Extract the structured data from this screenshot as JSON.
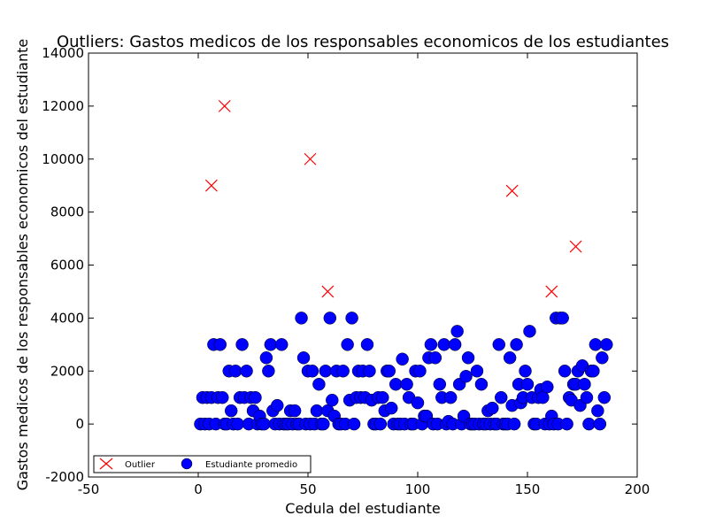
{
  "chart_data": {
    "type": "scatter",
    "title": "Outliers: Gastos medicos de los responsables economicos de los estudiantes",
    "xlabel": "Cedula del estudiante",
    "ylabel": "Gastos medicos de los responsables economicos del estudiante",
    "xlim": [
      -50,
      200
    ],
    "ylim": [
      -2000,
      14000
    ],
    "xticks": [
      -50,
      0,
      50,
      100,
      150,
      200
    ],
    "yticks": [
      -2000,
      0,
      2000,
      4000,
      6000,
      8000,
      10000,
      12000,
      14000
    ],
    "grid": false,
    "legend_position": "lower-left",
    "series": [
      {
        "name": "Outlier",
        "marker": "x",
        "color": "#ff0000",
        "points": [
          [
            6,
            9000
          ],
          [
            12,
            12000
          ],
          [
            51,
            10000
          ],
          [
            59,
            5000
          ],
          [
            143,
            8800
          ],
          [
            161,
            5000
          ],
          [
            172,
            6700
          ]
        ]
      },
      {
        "name": "Estudiante promedio",
        "marker": "circle",
        "color": "#0000ff",
        "points": [
          [
            1,
            0
          ],
          [
            2,
            1000
          ],
          [
            3,
            0
          ],
          [
            4,
            1000
          ],
          [
            5,
            0
          ],
          [
            6,
            1000
          ],
          [
            7,
            3000
          ],
          [
            8,
            0
          ],
          [
            9,
            1000
          ],
          [
            10,
            3000
          ],
          [
            11,
            1000
          ],
          [
            12,
            0
          ],
          [
            13,
            0
          ],
          [
            14,
            2000
          ],
          [
            15,
            500
          ],
          [
            16,
            0
          ],
          [
            17,
            2000
          ],
          [
            18,
            0
          ],
          [
            19,
            1000
          ],
          [
            20,
            3000
          ],
          [
            21,
            1000
          ],
          [
            22,
            2000
          ],
          [
            23,
            0
          ],
          [
            24,
            1000
          ],
          [
            25,
            500
          ],
          [
            26,
            1000
          ],
          [
            27,
            0
          ],
          [
            28,
            300
          ],
          [
            29,
            0
          ],
          [
            30,
            0
          ],
          [
            31,
            2500
          ],
          [
            32,
            2000
          ],
          [
            33,
            3000
          ],
          [
            34,
            500
          ],
          [
            35,
            0
          ],
          [
            36,
            700
          ],
          [
            37,
            0
          ],
          [
            38,
            3000
          ],
          [
            39,
            0
          ],
          [
            40,
            0
          ],
          [
            41,
            0
          ],
          [
            42,
            500
          ],
          [
            43,
            0
          ],
          [
            44,
            500
          ],
          [
            45,
            0
          ],
          [
            46,
            0
          ],
          [
            47,
            4000
          ],
          [
            48,
            2500
          ],
          [
            49,
            0
          ],
          [
            50,
            2000
          ],
          [
            51,
            0
          ],
          [
            52,
            2000
          ],
          [
            53,
            0
          ],
          [
            54,
            500
          ],
          [
            55,
            1500
          ],
          [
            56,
            0
          ],
          [
            57,
            0
          ],
          [
            58,
            2000
          ],
          [
            59,
            500
          ],
          [
            60,
            4000
          ],
          [
            61,
            900
          ],
          [
            62,
            300
          ],
          [
            63,
            2000
          ],
          [
            64,
            0
          ],
          [
            65,
            0
          ],
          [
            66,
            2000
          ],
          [
            67,
            0
          ],
          [
            68,
            3000
          ],
          [
            69,
            900
          ],
          [
            70,
            4000
          ],
          [
            71,
            0
          ],
          [
            72,
            1000
          ],
          [
            73,
            2000
          ],
          [
            74,
            1000
          ],
          [
            75,
            2000
          ],
          [
            76,
            1000
          ],
          [
            77,
            3000
          ],
          [
            78,
            2000
          ],
          [
            79,
            900
          ],
          [
            80,
            0
          ],
          [
            81,
            0
          ],
          [
            82,
            1000
          ],
          [
            83,
            0
          ],
          [
            84,
            1000
          ],
          [
            85,
            500
          ],
          [
            86,
            2000
          ],
          [
            87,
            2000
          ],
          [
            88,
            600
          ],
          [
            89,
            0
          ],
          [
            90,
            1500
          ],
          [
            91,
            0
          ],
          [
            92,
            0
          ],
          [
            93,
            2450
          ],
          [
            94,
            0
          ],
          [
            95,
            1500
          ],
          [
            96,
            1000
          ],
          [
            97,
            0
          ],
          [
            98,
            0
          ],
          [
            99,
            2000
          ],
          [
            100,
            800
          ],
          [
            101,
            2000
          ],
          [
            102,
            0
          ],
          [
            103,
            300
          ],
          [
            104,
            300
          ],
          [
            105,
            2500
          ],
          [
            106,
            3000
          ],
          [
            107,
            0
          ],
          [
            108,
            2500
          ],
          [
            109,
            0
          ],
          [
            110,
            1500
          ],
          [
            111,
            1000
          ],
          [
            112,
            3000
          ],
          [
            113,
            0
          ],
          [
            114,
            100
          ],
          [
            115,
            1000
          ],
          [
            116,
            0
          ],
          [
            117,
            3000
          ],
          [
            118,
            3500
          ],
          [
            119,
            1500
          ],
          [
            120,
            0
          ],
          [
            121,
            300
          ],
          [
            122,
            1800
          ],
          [
            123,
            2500
          ],
          [
            124,
            0
          ],
          [
            125,
            0
          ],
          [
            126,
            0
          ],
          [
            127,
            2000
          ],
          [
            128,
            0
          ],
          [
            129,
            1500
          ],
          [
            130,
            0
          ],
          [
            131,
            0
          ],
          [
            132,
            500
          ],
          [
            133,
            0
          ],
          [
            134,
            600
          ],
          [
            135,
            0
          ],
          [
            136,
            0
          ],
          [
            137,
            3000
          ],
          [
            138,
            1000
          ],
          [
            139,
            0
          ],
          [
            140,
            0
          ],
          [
            141,
            0
          ],
          [
            142,
            2500
          ],
          [
            143,
            700
          ],
          [
            144,
            0
          ],
          [
            145,
            3000
          ],
          [
            146,
            1500
          ],
          [
            147,
            800
          ],
          [
            148,
            1000
          ],
          [
            149,
            2000
          ],
          [
            150,
            1500
          ],
          [
            151,
            3500
          ],
          [
            152,
            1000
          ],
          [
            153,
            0
          ],
          [
            154,
            0
          ],
          [
            155,
            1000
          ],
          [
            156,
            1300
          ],
          [
            157,
            1000
          ],
          [
            158,
            0
          ],
          [
            159,
            1400
          ],
          [
            160,
            0
          ],
          [
            161,
            300
          ],
          [
            162,
            0
          ],
          [
            163,
            4000
          ],
          [
            164,
            0
          ],
          [
            165,
            4000
          ],
          [
            166,
            4000
          ],
          [
            167,
            2000
          ],
          [
            168,
            0
          ],
          [
            169,
            1000
          ],
          [
            170,
            900
          ],
          [
            171,
            1500
          ],
          [
            172,
            1500
          ],
          [
            173,
            2000
          ],
          [
            174,
            700
          ],
          [
            175,
            2200
          ],
          [
            176,
            1500
          ],
          [
            177,
            1000
          ],
          [
            178,
            0
          ],
          [
            179,
            2000
          ],
          [
            180,
            2000
          ],
          [
            181,
            3000
          ],
          [
            182,
            500
          ],
          [
            183,
            0
          ],
          [
            184,
            2500
          ],
          [
            185,
            1000
          ],
          [
            186,
            3000
          ]
        ]
      }
    ]
  }
}
